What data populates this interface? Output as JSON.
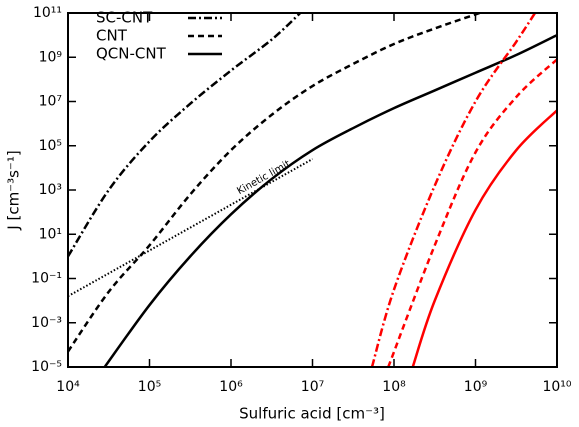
{
  "chart_data": {
    "type": "line",
    "xlabel": "Sulfuric acid [cm⁻³]",
    "ylabel": "J [cm⁻³s⁻¹]",
    "xlog": true,
    "ylog": true,
    "xlim": [
      10000,
      10000000000
    ],
    "ylim": [
      1e-05,
      100000000000.0
    ],
    "xticks": [
      {
        "value": 10000,
        "label": "10⁴"
      },
      {
        "value": 100000,
        "label": "10⁵"
      },
      {
        "value": 1000000,
        "label": "10⁶"
      },
      {
        "value": 10000000,
        "label": "10⁷"
      },
      {
        "value": 100000000,
        "label": "10⁸"
      },
      {
        "value": 1000000000,
        "label": "10⁹"
      },
      {
        "value": 10000000000,
        "label": "10¹⁰"
      }
    ],
    "yticks": [
      {
        "value": 1e-05,
        "label": "10⁻⁵"
      },
      {
        "value": 0.001,
        "label": "10⁻³"
      },
      {
        "value": 0.1,
        "label": "10⁻¹"
      },
      {
        "value": 10,
        "label": "10¹"
      },
      {
        "value": 1000,
        "label": "10³"
      },
      {
        "value": 100000,
        "label": "10⁵"
      },
      {
        "value": 10000000,
        "label": "10⁷"
      },
      {
        "value": 1000000000,
        "label": "10⁹"
      },
      {
        "value": 100000000000,
        "label": "10¹¹"
      }
    ],
    "legend": "upper left",
    "series": [
      {
        "name": "SC-CNT",
        "color": "#000000",
        "dash": "dashdot",
        "x": [
          10000,
          31620,
          100000,
          316200,
          1000000,
          3162000,
          7079000
        ],
        "values": [
          1,
          1000,
          158500,
          7943000,
          251200000,
          6310000000,
          100000000000.0
        ]
      },
      {
        "name": "CNT",
        "color": "#000000",
        "dash": "dashed",
        "x": [
          10000,
          31620,
          100000,
          316200,
          1000000,
          3162000,
          10000000,
          31620000,
          100000000,
          316200000,
          1122000000
        ],
        "values": [
          5.01e-05,
          0.0251,
          3.162,
          631,
          63100,
          2512000,
          50120000,
          501200000,
          3981000000,
          20000000000,
          100000000000.0
        ]
      },
      {
        "name": "QCN-CNT",
        "color": "#000000",
        "dash": "solid",
        "x": [
          28180,
          100000,
          316200,
          1000000,
          3162000,
          10000000,
          31620000,
          100000000,
          316200000,
          1000000000,
          3162000000,
          10000000000
        ],
        "values": [
          1e-05,
          0.00631,
          1,
          79.4,
          3162,
          63100,
          631000,
          5012000,
          31620000,
          200000000,
          1259000000,
          10000000000
        ]
      },
      {
        "color": "#ff0000",
        "dash": "dashdot",
        "x": [
          53700000,
          100000000,
          316200000,
          1000000000,
          3162000000,
          5370000000
        ],
        "values": [
          1e-05,
          0.03162,
          1585,
          10000000,
          5012000000,
          100000000000.0
        ]
      },
      {
        "color": "#ff0000",
        "dash": "dashed",
        "x": [
          85110000,
          316200000,
          1000000000,
          3162000000,
          10000000000
        ],
        "values": [
          1e-05,
          3.162,
          50120,
          15850000,
          794300000
        ]
      },
      {
        "color": "#ff0000",
        "dash": "solid",
        "x": [
          169800000,
          316200000,
          1000000000,
          3162000000,
          10000000000
        ],
        "values": [
          1e-05,
          0.01,
          125.9,
          63100,
          3981000
        ]
      }
    ],
    "annotation_line": {
      "label": "Kinetic limit",
      "color": "#000000",
      "dash": "dotted",
      "x": [
        10000,
        10000000
      ],
      "values": [
        0.01585,
        25120
      ]
    }
  }
}
